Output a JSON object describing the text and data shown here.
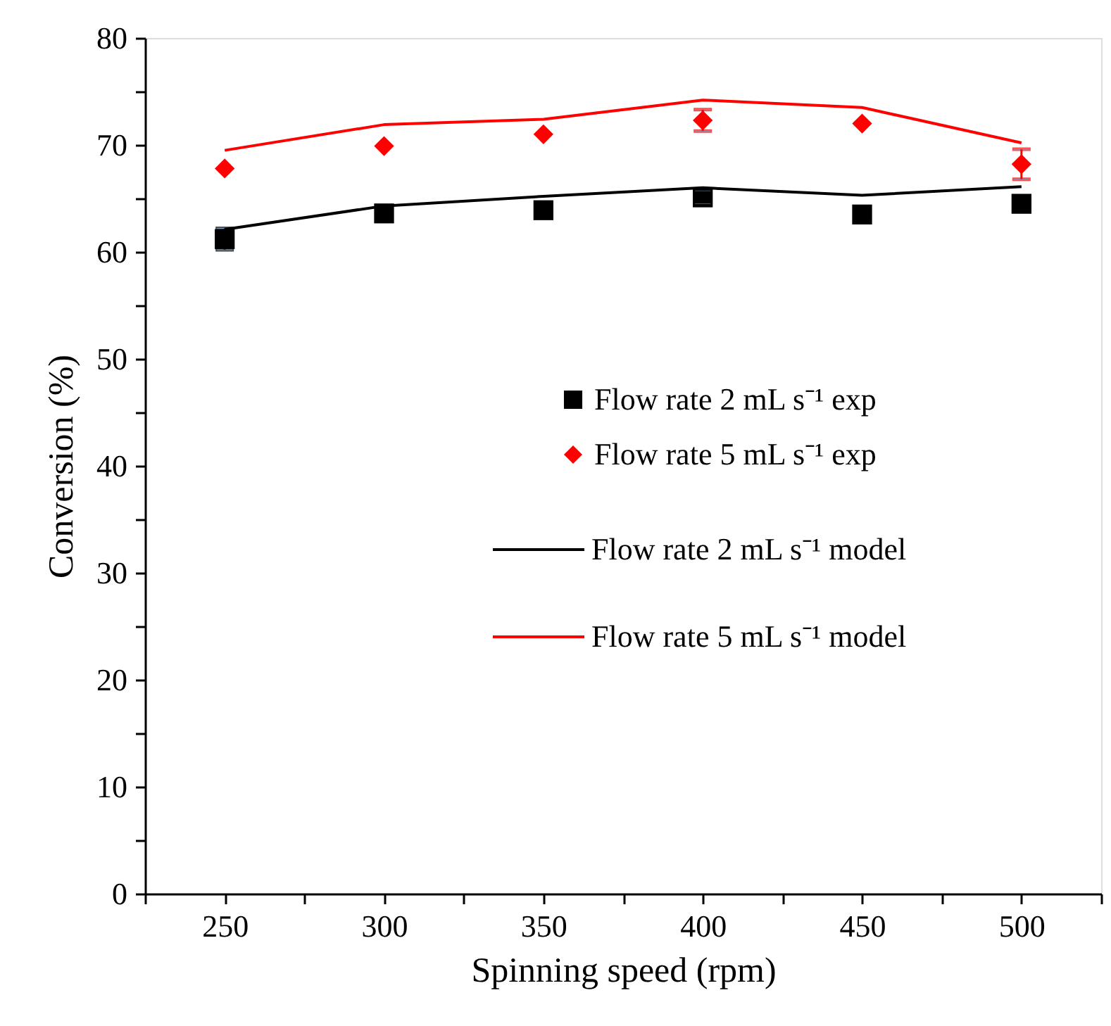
{
  "chart_data": {
    "type": "scatter",
    "xlabel": "Spinning speed (rpm)",
    "ylabel": "Conversion (%)",
    "x": [
      250,
      300,
      350,
      400,
      450,
      500
    ],
    "series": [
      {
        "name": "Flow rate 2 mL s⁻¹ exp",
        "marker": "square",
        "color": "#000000",
        "values": [
          61.2,
          63.6,
          63.9,
          65.1,
          63.5,
          64.5
        ],
        "errors": [
          1.0,
          null,
          null,
          0.6,
          null,
          null
        ]
      },
      {
        "name": "Flow rate 5 mL s⁻¹ exp",
        "marker": "diamond",
        "color": "#ff0000",
        "values": [
          67.8,
          69.9,
          71.0,
          72.3,
          72.0,
          68.2
        ],
        "errors": [
          null,
          null,
          null,
          1.0,
          null,
          1.4
        ]
      },
      {
        "name": "Flow rate 2 mL s⁻¹ model",
        "type": "line",
        "marker": "none",
        "line_style": "solid",
        "color": "#000000",
        "values": [
          62.1,
          64.3,
          65.2,
          66.0,
          65.3,
          66.1
        ]
      },
      {
        "name": "Flow rate 5 mL s⁻¹ model",
        "type": "line",
        "marker": "none",
        "line_style": "solid",
        "color": "#ff0000",
        "values": [
          69.5,
          71.9,
          72.4,
          74.2,
          73.5,
          70.2
        ]
      }
    ],
    "xlim": [
      225,
      525
    ],
    "xticks": [
      {
        "value": 225,
        "label": null
      },
      250,
      {
        "value": 275,
        "label": null
      },
      300,
      {
        "value": 325,
        "label": null
      },
      350,
      {
        "value": 375,
        "label": null
      },
      400,
      {
        "value": 425,
        "label": null
      },
      450,
      {
        "value": 475,
        "label": null
      },
      500,
      {
        "value": 525,
        "label": null
      }
    ],
    "ylim": [
      0,
      80
    ],
    "yticks": [
      0,
      {
        "value": 5,
        "label": null
      },
      10,
      {
        "value": 15,
        "label": null
      },
      20,
      {
        "value": 25,
        "label": null
      },
      30,
      {
        "value": 35,
        "label": null
      },
      40,
      {
        "value": 45,
        "label": null
      },
      50,
      {
        "value": 55,
        "label": null
      },
      60,
      {
        "value": 65,
        "label": null
      },
      70,
      {
        "value": 75,
        "label": null
      },
      80
    ],
    "grid": false,
    "legend": "right"
  }
}
